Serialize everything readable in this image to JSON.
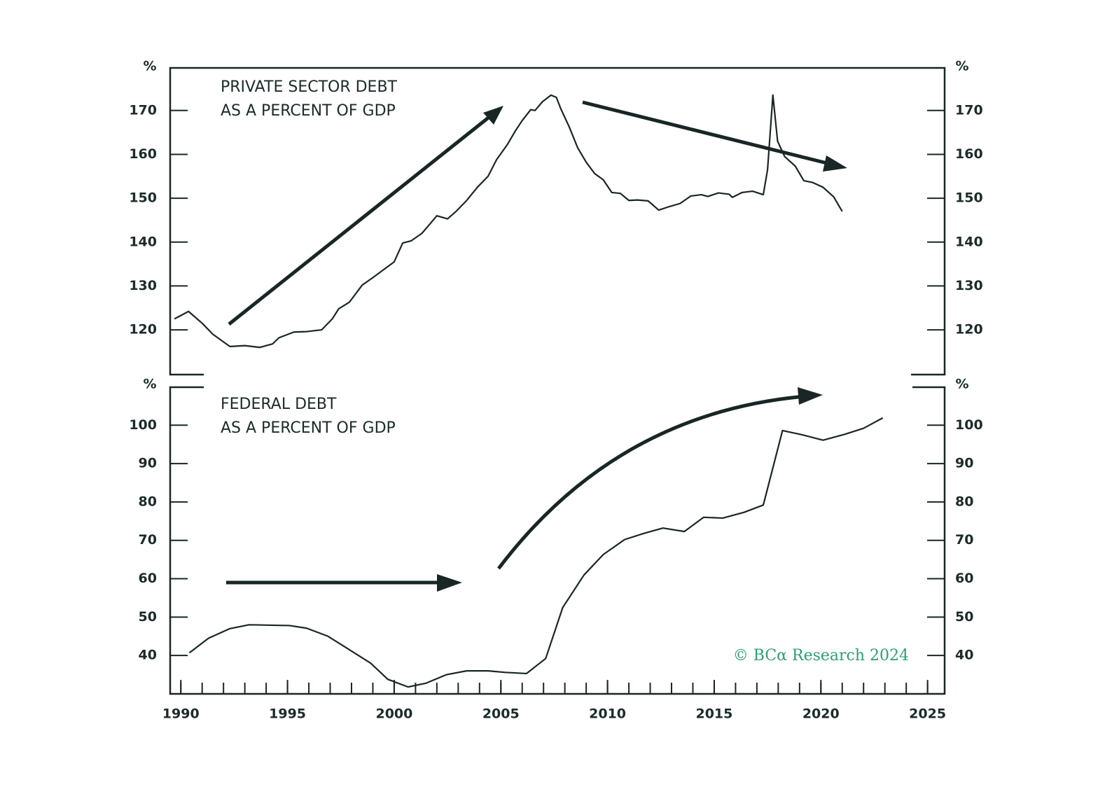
{
  "chart_data": [
    {
      "type": "line",
      "title": [
        "PRIVATE SECTOR DEBT",
        "AS A PERCENT OF GDP"
      ],
      "y_label": "%",
      "y2_label": "%",
      "xlim": [
        1989.5,
        2025.8
      ],
      "ylim": [
        109.8,
        179.7
      ],
      "yticks": [
        120,
        130,
        140,
        150,
        160,
        170
      ],
      "y2lim": [
        109.8,
        179.7
      ],
      "y2ticks": [
        120,
        130,
        140,
        150,
        160,
        170
      ],
      "series": [
        {
          "color": "#1a2626",
          "x": [
            1989.7,
            1990.36,
            1991.0,
            1991.5,
            1992.3,
            1993.0,
            1993.7,
            1994.3,
            1994.6,
            1995.3,
            1995.9,
            1996.6,
            1997.1,
            1997.4,
            1997.9,
            1998.5,
            1999.0,
            1999.5,
            2000.0,
            2000.4,
            2000.8,
            2001.3,
            2001.6,
            2002.0,
            2002.5,
            2002.9,
            2003.4,
            2003.9,
            2004.4,
            2004.8,
            2005.3,
            2005.7,
            2006.0,
            2006.4,
            2006.6,
            2006.95,
            2007.35,
            2007.6,
            2007.8,
            2008.2,
            2008.6,
            2009.0,
            2009.4,
            2009.8,
            2010.2,
            2010.6,
            2011.0,
            2011.4,
            2011.9,
            2012.4,
            2012.9,
            2013.4,
            2013.9,
            2014.4,
            2014.7,
            2015.2,
            2015.7,
            2015.85,
            2016.3,
            2016.8,
            2017.3,
            2017.5,
            2017.75,
            2017.97,
            2018.3,
            2018.8,
            2019.2,
            2019.6,
            2020.1,
            2020.6,
            2021.0
          ],
          "values": [
            122.5,
            124.2,
            121.5,
            119,
            116.2,
            116.4,
            116,
            116.8,
            118.2,
            119.5,
            119.6,
            120,
            122.5,
            124.8,
            126.3,
            130.2,
            131.9,
            133.7,
            135.5,
            139.8,
            140.3,
            142,
            143.7,
            146,
            145.3,
            147,
            149.5,
            152.5,
            155,
            158.8,
            162.2,
            165.5,
            167.7,
            170.2,
            170,
            172,
            173.5,
            173,
            170.5,
            166.3,
            161.5,
            158.2,
            155.6,
            154.2,
            151.3,
            151.1,
            149.5,
            149.6,
            149.4,
            147.3,
            148.1,
            148.8,
            150.5,
            150.8,
            150.4,
            151.2,
            150.9,
            150.2,
            151.3,
            151.6,
            150.8,
            156.5,
            173.5,
            163,
            159.5,
            157.3,
            154,
            153.6,
            152.5,
            150.3,
            147
          ]
        }
      ]
    },
    {
      "type": "line",
      "title": [
        "FEDERAL DEBT",
        "AS A PERCENT OF GDP"
      ],
      "y_label": "%",
      "y2_label": "%",
      "source": "© BCα Research 2024",
      "xlim": [
        1989.5,
        2025.8
      ],
      "xticks": [
        1990,
        1995,
        2000,
        2005,
        2010,
        2015,
        2020,
        2025
      ],
      "xminorticks": [
        1990,
        1991,
        1992,
        1993,
        1994,
        1995,
        1996,
        1997,
        1998,
        1999,
        2000,
        2001,
        2002,
        2003,
        2004,
        2005,
        2006,
        2007,
        2008,
        2009,
        2010,
        2011,
        2012,
        2013,
        2014,
        2015,
        2016,
        2017,
        2018,
        2019,
        2020,
        2021,
        2022,
        2023,
        2024,
        2025
      ],
      "ylim": [
        30,
        109.9
      ],
      "yticks": [
        40,
        50,
        60,
        70,
        80,
        90,
        100
      ],
      "y2lim": [
        30,
        109.9
      ],
      "y2ticks": [
        40,
        50,
        60,
        70,
        80,
        90,
        100
      ],
      "series": [
        {
          "color": "#1a2626",
          "x": [
            1990.4,
            1991.3,
            1992.3,
            1993.2,
            1995.1,
            1995.9,
            1996.9,
            1997.9,
            1998.9,
            1999.7,
            2000.65,
            2001.5,
            2002.45,
            2003.4,
            2004.4,
            2005.2,
            2006.2,
            2007.1,
            2007.9,
            2008.9,
            2009.8,
            2010.8,
            2011.7,
            2012.6,
            2013.6,
            2014.5,
            2015.4,
            2016.4,
            2017.3,
            2018.2,
            2019.2,
            2020.1,
            2021.1,
            2022.0,
            2022.9
          ],
          "values": [
            40.7,
            44.5,
            47,
            48,
            47.8,
            47.1,
            45,
            41.5,
            38,
            33.8,
            31.8,
            32.8,
            35,
            36,
            36,
            35.6,
            35.3,
            39.2,
            52.5,
            61,
            66.3,
            70.2,
            71.8,
            73.2,
            72.3,
            76,
            75.8,
            77.3,
            79.2,
            98.6,
            97.4,
            96.1,
            97.6,
            99.2,
            101.9
          ]
        }
      ]
    }
  ]
}
